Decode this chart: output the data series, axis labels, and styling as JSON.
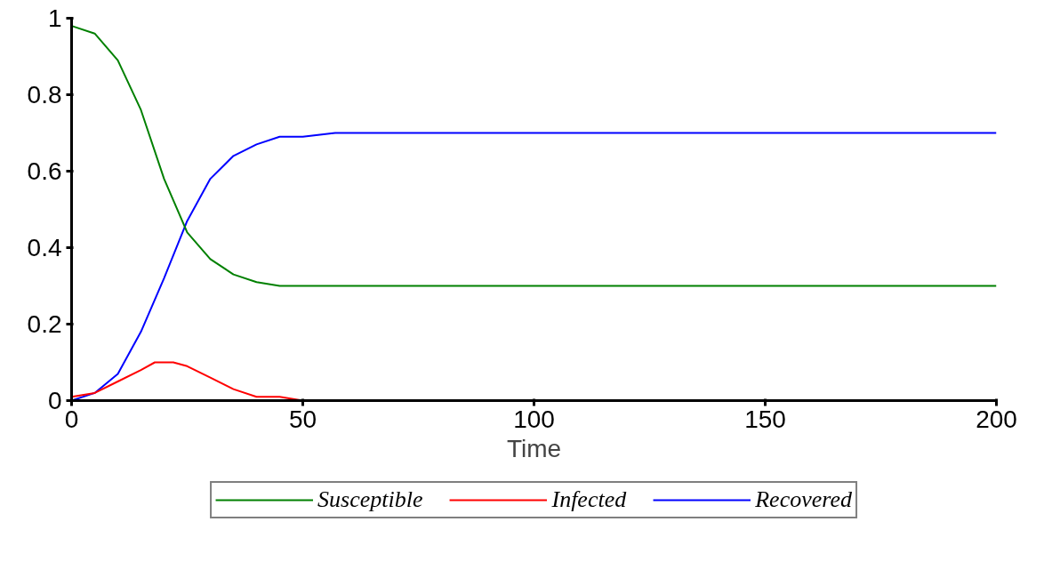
{
  "chart_data": {
    "type": "line",
    "xlabel": "Time",
    "xlim": [
      0,
      200
    ],
    "ylim": [
      0,
      1
    ],
    "xticks": [
      0,
      50,
      100,
      150,
      200
    ],
    "yticks": [
      0,
      0.2,
      0.4,
      0.6,
      0.8,
      1
    ],
    "grid": false,
    "legend": "bottom",
    "line_style": "solid",
    "series": [
      {
        "name": "Susceptible",
        "color": "#008000",
        "x": [
          0,
          5,
          10,
          15,
          20,
          25,
          30,
          35,
          40,
          45,
          50,
          55,
          200
        ],
        "values": [
          0.98,
          0.96,
          0.89,
          0.76,
          0.58,
          0.44,
          0.37,
          0.33,
          0.31,
          0.3,
          0.3,
          0.3,
          0.3
        ]
      },
      {
        "name": "Infected",
        "color": "#ff0000",
        "x": [
          0,
          5,
          10,
          15,
          18,
          22,
          25,
          30,
          35,
          40,
          45,
          50
        ],
        "values": [
          0.01,
          0.02,
          0.05,
          0.08,
          0.1,
          0.1,
          0.09,
          0.06,
          0.03,
          0.01,
          0.01,
          0
        ]
      },
      {
        "name": "Recovered",
        "color": "#0000ff",
        "x": [
          0,
          5,
          10,
          15,
          20,
          25,
          30,
          35,
          40,
          45,
          50,
          57,
          200
        ],
        "values": [
          0,
          0.02,
          0.07,
          0.18,
          0.32,
          0.47,
          0.58,
          0.64,
          0.67,
          0.69,
          0.69,
          0.7,
          0.7
        ]
      }
    ]
  }
}
